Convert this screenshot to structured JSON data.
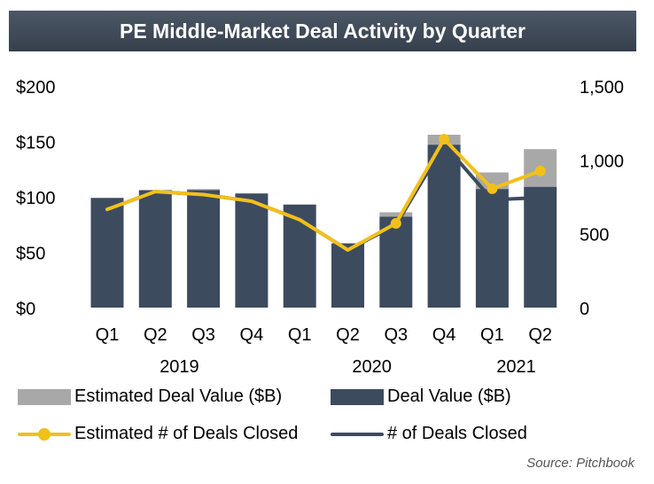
{
  "colors": {
    "deal_value": "#3d4b5f",
    "estimated_value": "#a8a8a8",
    "estimated_line": "#f2c01a",
    "deals_line": "#3d4b5f"
  },
  "chart_data": {
    "type": "bar",
    "title": "PE Middle-Market Deal Activity by Quarter",
    "categories": [
      "Q1",
      "Q2",
      "Q3",
      "Q4",
      "Q1",
      "Q2",
      "Q3",
      "Q4",
      "Q1",
      "Q2"
    ],
    "years": [
      {
        "label": "2019",
        "span": [
          0,
          3
        ]
      },
      {
        "label": "2020",
        "span": [
          4,
          7
        ]
      },
      {
        "label": "2021",
        "span": [
          8,
          9
        ]
      }
    ],
    "y_left": {
      "ticks": [
        "$0",
        "$50",
        "$100",
        "$150",
        "$200"
      ],
      "values": [
        0,
        50,
        100,
        150,
        200
      ],
      "ylim": [
        0,
        200
      ]
    },
    "y_right": {
      "ticks": [
        "0",
        "500",
        "1,000",
        "1,500"
      ],
      "values": [
        0,
        500,
        1000,
        1500
      ],
      "ylim": [
        0,
        1500
      ]
    },
    "series": [
      {
        "name": "Deal Value ($B)",
        "kind": "bar",
        "axis": "left",
        "values": [
          99,
          106,
          106,
          103,
          93,
          58,
          82,
          147,
          107,
          109
        ]
      },
      {
        "name": "Estimated Deal Value ($B)",
        "kind": "bar-stack",
        "axis": "left",
        "values": [
          0,
          0,
          1,
          0,
          0,
          0,
          4,
          9,
          15,
          34
        ]
      },
      {
        "name": "Estimated # of Deals Closed",
        "kind": "line",
        "axis": "right",
        "values": [
          665,
          785,
          765,
          720,
          595,
          390,
          570,
          1140,
          805,
          925
        ]
      },
      {
        "name": "# of Deals Closed",
        "kind": "line",
        "axis": "right",
        "values": [
          665,
          785,
          765,
          720,
          595,
          390,
          560,
          1105,
          730,
          745
        ]
      }
    ],
    "legend": {
      "placement": "bottom"
    },
    "source": "Source: Pitchbook"
  }
}
